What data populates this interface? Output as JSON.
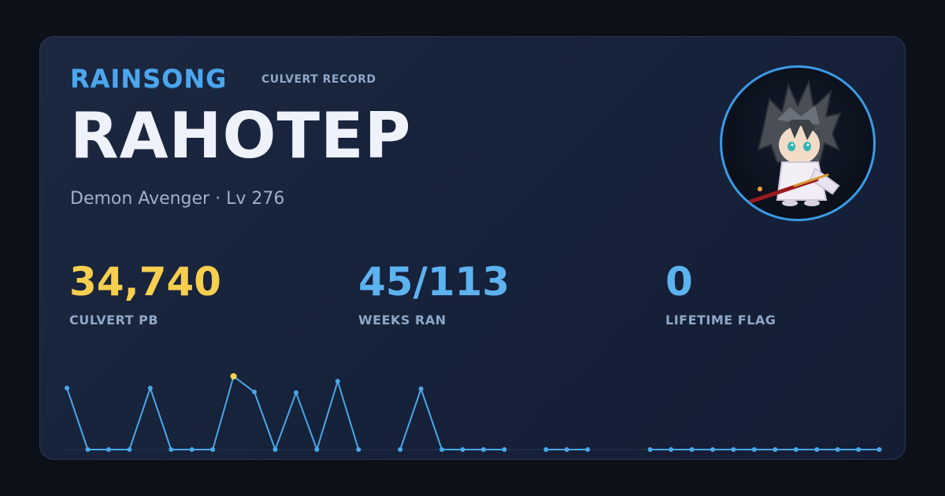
{
  "header": {
    "brand": "RAINSONG",
    "subtitle": "CULVERT RECORD"
  },
  "character": {
    "name": "RAHOTEP",
    "info": "Demon Avenger · Lv 276"
  },
  "stats": [
    {
      "value": "34,740",
      "label": "CULVERT PB",
      "color": "#f7cf4f"
    },
    {
      "value": "45/113",
      "label": "WEEKS RAN",
      "color": "#5db2f0"
    },
    {
      "value": "0",
      "label": "LIFETIME FLAG",
      "color": "#5db2f0"
    }
  ],
  "colors": {
    "accent": "#3a9be6",
    "line": "#4aa8ea",
    "highlight": "#f7cf4f"
  },
  "icons": {
    "avatar": "character-avatar-icon"
  },
  "chart_data": {
    "type": "line",
    "ylim": [
      0,
      34740
    ],
    "best_index": 8,
    "points": [
      29200,
      0,
      0,
      0,
      29200,
      0,
      0,
      0,
      34740,
      27300,
      0,
      27000,
      0,
      32400,
      0,
      null,
      0,
      28800,
      0,
      0,
      0,
      0,
      null,
      0,
      0,
      0,
      null,
      null,
      0,
      0,
      0,
      0,
      0,
      0,
      0,
      0,
      0,
      0,
      0,
      0
    ]
  }
}
